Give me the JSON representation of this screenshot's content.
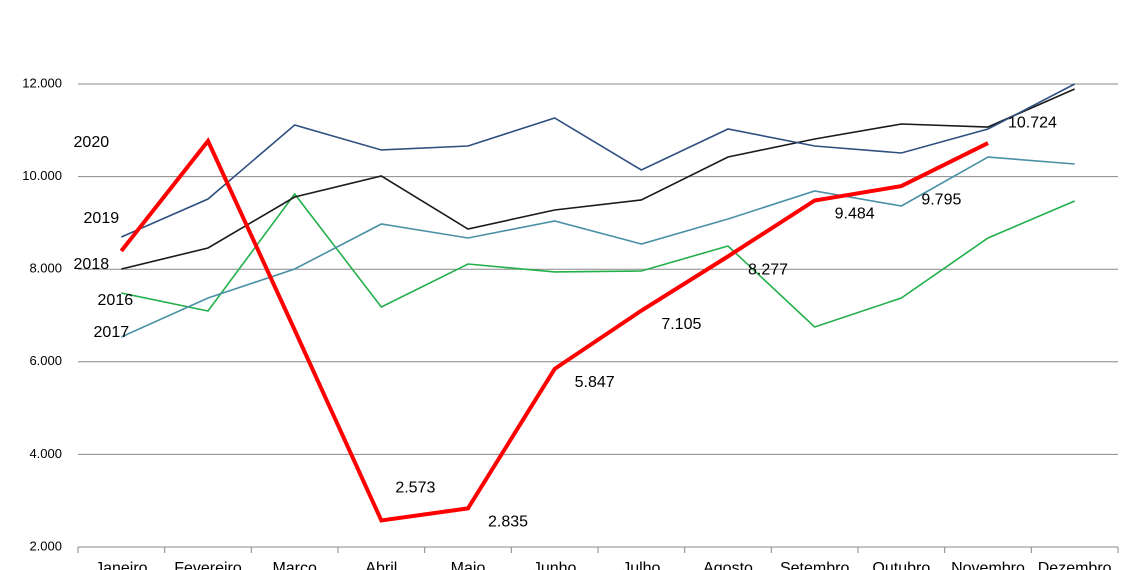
{
  "chart_data": {
    "type": "line",
    "categories": [
      "Janeiro",
      "Fevereiro",
      "Março",
      "Abril",
      "Maio",
      "Junho",
      "Julho",
      "Agosto",
      "Setembro",
      "Outubro",
      "Novembro",
      "Dezembro"
    ],
    "ylim": [
      2000,
      12000
    ],
    "yticks": [
      {
        "value": 2000,
        "label": "2.000"
      },
      {
        "value": 4000,
        "label": "4.000"
      },
      {
        "value": 6000,
        "label": "6.000"
      },
      {
        "value": 8000,
        "label": "8.000"
      },
      {
        "value": 10000,
        "label": "10.000"
      },
      {
        "value": 12000,
        "label": "12.000"
      }
    ],
    "grid": true,
    "series": [
      {
        "name": "2016",
        "color": "#22b04b",
        "values": [
          7486,
          7097,
          9624,
          7184,
          8112,
          7940,
          7961,
          8501,
          6752,
          7378,
          8674,
          9473
        ]
      },
      {
        "name": "2017",
        "color": "#4a90a4",
        "values": [
          6536,
          7378,
          8004,
          8976,
          8674,
          9041,
          8544,
          9084,
          9689,
          9365,
          10423,
          10272
        ]
      },
      {
        "name": "2018",
        "color": "#1a1a1a",
        "values": [
          8004,
          8458,
          9559,
          10013,
          8868,
          9279,
          9495,
          10423,
          10812,
          11136,
          11071,
          11892
        ]
      },
      {
        "name": "2019",
        "color": "#2e4f7f",
        "values": [
          8695,
          9516,
          11114,
          10575,
          10661,
          11266,
          10143,
          11028,
          10661,
          10510,
          11028,
          12000
        ]
      },
      {
        "name": "2020",
        "color": "#ff0000",
        "values": [
          8393,
          10769,
          6687,
          2573,
          2835,
          5847,
          7105,
          8277,
          9484,
          9795,
          10724,
          null
        ],
        "value_labels": [
          null,
          null,
          null,
          "2.573",
          "2.835",
          "5.847",
          "7.105",
          "8.277",
          "9.484",
          "9.795",
          "10.724",
          null
        ]
      }
    ]
  }
}
